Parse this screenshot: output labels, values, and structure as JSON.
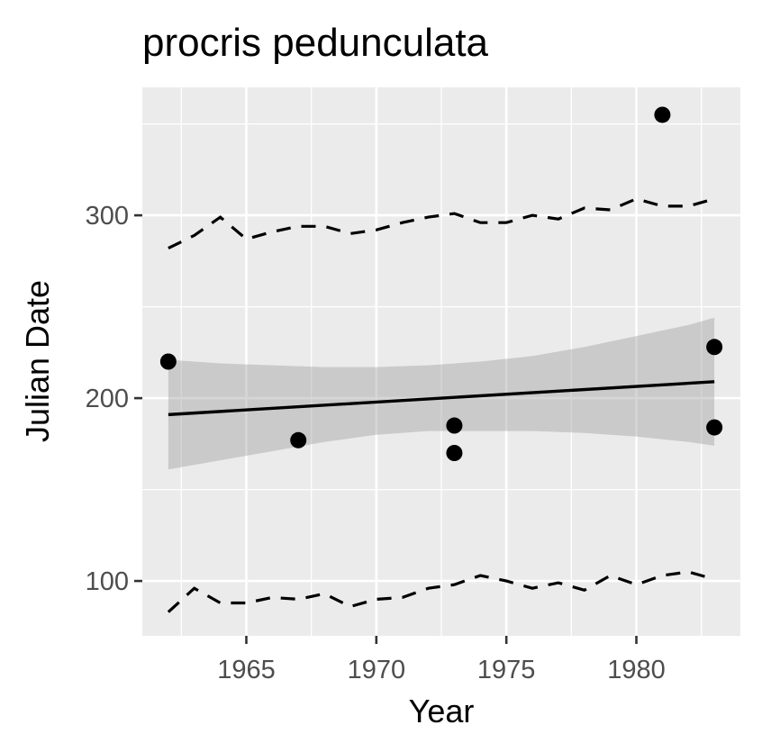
{
  "chart_data": {
    "type": "scatter",
    "title": "procris pedunculata",
    "xlabel": "Year",
    "ylabel": "Julian Date",
    "xlim": [
      1961.0,
      1984.0
    ],
    "ylim": [
      70,
      370
    ],
    "x_ticks": [
      1965,
      1970,
      1975,
      1980
    ],
    "x_tick_labels": [
      "1965",
      "1970",
      "1975",
      "1980"
    ],
    "y_ticks": [
      100,
      200,
      300
    ],
    "y_tick_labels": [
      "100",
      "200",
      "300"
    ],
    "x_minor_ticks": [
      1962.5,
      1967.5,
      1972.5,
      1977.5,
      1982.5
    ],
    "y_minor_ticks": [
      150,
      250,
      350
    ],
    "grid": true,
    "points": [
      {
        "x": 1962,
        "y": 220
      },
      {
        "x": 1967,
        "y": 177
      },
      {
        "x": 1973,
        "y": 185
      },
      {
        "x": 1973,
        "y": 170
      },
      {
        "x": 1981,
        "y": 355
      },
      {
        "x": 1983,
        "y": 228
      },
      {
        "x": 1983,
        "y": 184
      }
    ],
    "fit_line": {
      "x": [
        1962,
        1983
      ],
      "y": [
        191,
        209
      ]
    },
    "confidence_band": {
      "x": [
        1962,
        1964,
        1966,
        1968,
        1970,
        1972,
        1974,
        1976,
        1978,
        1980,
        1982,
        1983
      ],
      "upper": [
        221,
        219,
        218,
        217,
        217,
        218,
        220,
        223,
        228,
        234,
        240,
        244
      ],
      "lower": [
        161,
        166,
        171,
        176,
        180,
        182,
        182,
        182,
        181,
        179,
        176,
        174
      ]
    },
    "upper_quantile": {
      "x": [
        1962,
        1963,
        1964,
        1965,
        1966,
        1967,
        1968,
        1969,
        1970,
        1971,
        1972,
        1973,
        1974,
        1975,
        1976,
        1977,
        1978,
        1979,
        1980,
        1981,
        1982,
        1983
      ],
      "y": [
        282,
        289,
        299,
        287,
        291,
        294,
        294,
        290,
        292,
        296,
        299,
        301,
        296,
        296,
        300,
        298,
        304,
        303,
        309,
        305,
        305,
        309
      ]
    },
    "lower_quantile": {
      "x": [
        1962,
        1963,
        1964,
        1965,
        1966,
        1967,
        1968,
        1969,
        1970,
        1971,
        1972,
        1973,
        1974,
        1975,
        1976,
        1977,
        1978,
        1979,
        1980,
        1981,
        1982,
        1983
      ],
      "y": [
        83,
        96,
        88,
        88,
        91,
        90,
        93,
        86,
        90,
        91,
        96,
        98,
        103,
        100,
        96,
        99,
        95,
        103,
        98,
        103,
        105,
        101
      ]
    }
  }
}
